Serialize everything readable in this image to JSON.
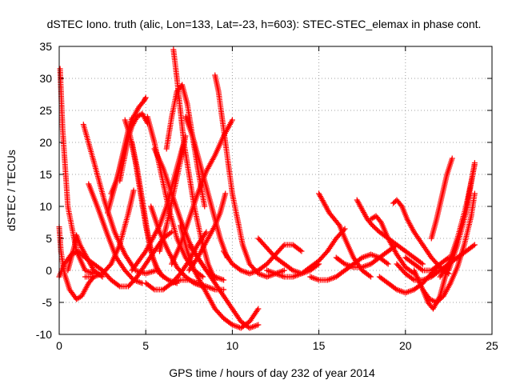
{
  "chart_data": {
    "type": "scatter",
    "title": "dSTEC Iono. truth (alic, Lon=133, Lat=-23, h=603): STEC-STEC_elemax in phase cont.",
    "xlabel": "GPS time / hours of day 232 of year 2014",
    "ylabel": "dSTEC  / TECUs",
    "xlim": [
      0,
      25
    ],
    "ylim": [
      -10,
      35
    ],
    "x_ticks": [
      0,
      5,
      10,
      15,
      20,
      25
    ],
    "y_ticks": [
      -10,
      -5,
      0,
      5,
      10,
      15,
      20,
      25,
      30,
      35
    ],
    "grid": true,
    "marker": "plus",
    "color": "#ff0000",
    "series": [
      {
        "x": [
          0.05,
          0.2,
          0.5,
          1.0,
          1.5,
          2.0
        ],
        "y": [
          31.5,
          22,
          10,
          3,
          0,
          -0.5
        ]
      },
      {
        "x": [
          0.0,
          0.1,
          0.3,
          0.6,
          1.0,
          1.3,
          1.7,
          2.0
        ],
        "y": [
          6.8,
          3,
          -0.5,
          -3,
          -4.5,
          -4,
          -2,
          -1
        ]
      },
      {
        "x": [
          0.0,
          0.3,
          0.7,
          1.1,
          1.5,
          2.0,
          2.5
        ],
        "y": [
          -1,
          1,
          2.5,
          3,
          2,
          1,
          0
        ]
      },
      {
        "x": [
          0.5,
          0.7,
          0.9,
          1.0,
          1.2,
          1.6,
          2.0,
          2.5
        ],
        "y": [
          0,
          2,
          4,
          5.5,
          4,
          2,
          0,
          -1
        ]
      },
      {
        "x": [
          1.4,
          2.0,
          2.6,
          3.2,
          3.8,
          4.4,
          5.0,
          5.6
        ],
        "y": [
          22.8,
          17,
          11,
          6,
          2.5,
          0,
          -0.5,
          0
        ]
      },
      {
        "x": [
          1.7,
          2.2,
          2.8,
          3.3,
          3.8,
          4.3,
          4.8
        ],
        "y": [
          13.5,
          10,
          5.5,
          2,
          0,
          -1.5,
          -2
        ]
      },
      {
        "x": [
          1.5,
          2.0,
          2.5,
          3.0,
          3.5,
          4.0,
          4.3
        ],
        "y": [
          -1,
          -1,
          -0.5,
          1,
          4,
          9,
          12.5
        ]
      },
      {
        "x": [
          2.5,
          3.0,
          3.5,
          4.0,
          4.5,
          5.0,
          5.5,
          6.0,
          6.5
        ],
        "y": [
          0,
          -1.5,
          -2.5,
          -2.5,
          -1,
          1,
          3,
          5,
          6
        ]
      },
      {
        "x": [
          2.8,
          3.1,
          3.4,
          3.7,
          4.0,
          4.2
        ],
        "y": [
          9,
          12,
          15,
          18.5,
          22,
          23.8
        ]
      },
      {
        "x": [
          3.0,
          3.3,
          3.6,
          3.9,
          4.2,
          4.5,
          4.8,
          5.1
        ],
        "y": [
          12,
          14,
          17,
          20,
          22.5,
          24,
          24.5,
          23
        ]
      },
      {
        "x": [
          3.5,
          3.8,
          4.0,
          4.3,
          4.6,
          4.9,
          5.0
        ],
        "y": [
          14,
          18,
          21,
          24,
          25.5,
          26.5,
          27
        ]
      },
      {
        "x": [
          3.8,
          4.1,
          4.4,
          4.7,
          5.0,
          5.3,
          5.6,
          6.0
        ],
        "y": [
          23.5,
          21,
          17,
          12,
          7,
          3,
          0.5,
          -1
        ]
      },
      {
        "x": [
          4.2,
          4.5,
          4.8,
          5.1,
          5.4,
          5.8,
          6.3,
          6.8
        ],
        "y": [
          20,
          16,
          11,
          6,
          2,
          -0.5,
          -1.5,
          -2
        ]
      },
      {
        "x": [
          4.2,
          4.6,
          5.0,
          5.4,
          5.8,
          6.2,
          6.6,
          7.0,
          7.2
        ],
        "y": [
          0,
          1.5,
          3,
          5,
          7,
          10,
          14,
          18,
          20
        ]
      },
      {
        "x": [
          5.0,
          5.5,
          6.0,
          6.5,
          7.0,
          7.5,
          8.0,
          8.5
        ],
        "y": [
          -2,
          -3,
          -3,
          -2,
          -0.5,
          1.5,
          4,
          6
        ]
      },
      {
        "x": [
          5.3,
          5.8,
          6.3,
          6.8,
          7.3,
          7.8,
          8.3
        ],
        "y": [
          10,
          6,
          3,
          0.5,
          -1,
          -2,
          -2.5
        ]
      },
      {
        "x": [
          5.1,
          5.5,
          5.9,
          6.3,
          6.8,
          7.3,
          7.8,
          8.3
        ],
        "y": [
          24,
          20,
          15,
          10,
          5,
          2,
          0,
          -1
        ]
      },
      {
        "x": [
          5.5,
          6.0,
          6.5,
          7.0,
          7.5,
          8.0,
          8.5,
          9.0,
          9.5
        ],
        "y": [
          19,
          16,
          12,
          8,
          4.5,
          2,
          0,
          -1,
          -1.5
        ]
      },
      {
        "x": [
          5.8,
          6.2,
          6.6,
          7.0,
          7.3
        ],
        "y": [
          3,
          7,
          12,
          17,
          21
        ]
      },
      {
        "x": [
          6.2,
          6.5,
          6.8,
          7.1,
          7.4,
          7.7,
          8.0,
          8.4
        ],
        "y": [
          19,
          24,
          28,
          29,
          26,
          21,
          16,
          10
        ]
      },
      {
        "x": [
          6.6,
          6.8,
          7.0,
          7.2,
          7.5,
          7.8,
          8.2,
          8.6,
          9.0
        ],
        "y": [
          34.5,
          30,
          25,
          20,
          15,
          10,
          5,
          1,
          -1.5
        ]
      },
      {
        "x": [
          6.5,
          7.0,
          7.5,
          8.0,
          8.5,
          9.0,
          9.5,
          10.0
        ],
        "y": [
          1,
          4,
          8,
          12,
          15.5,
          18,
          21,
          23.5
        ]
      },
      {
        "x": [
          7.0,
          7.4,
          7.8,
          8.2,
          8.6,
          9.0,
          9.5,
          10.0,
          10.5,
          11.0,
          11.5
        ],
        "y": [
          7,
          3,
          0,
          -2,
          -4,
          -6,
          -7.5,
          -8.5,
          -9,
          -8,
          -6
        ]
      },
      {
        "x": [
          7.3,
          7.7,
          8.1,
          8.5,
          8.9,
          9.3,
          9.7
        ],
        "y": [
          24,
          21,
          17,
          13,
          9,
          5,
          2
        ]
      },
      {
        "x": [
          7.5,
          8.0,
          8.5,
          9.0,
          9.5,
          10.0,
          10.5,
          11.0,
          11.5
        ],
        "y": [
          4,
          2,
          0,
          -2,
          -4,
          -6,
          -8,
          -9,
          -8.5
        ]
      },
      {
        "x": [
          9.0,
          9.2,
          9.4,
          9.6,
          9.8,
          10.0,
          10.3,
          10.6,
          11.0,
          11.5,
          12.0,
          12.5,
          13.0
        ],
        "y": [
          30.5,
          28,
          24,
          20,
          16,
          12,
          8,
          4,
          1,
          -0.5,
          -1,
          -0.5,
          0
        ]
      },
      {
        "x": [
          7.5,
          8.0,
          8.5,
          9.0,
          9.3,
          9.6
        ],
        "y": [
          0,
          2,
          4.5,
          7,
          9,
          12
        ]
      },
      {
        "x": [
          6.5,
          7.0,
          7.5,
          8.0,
          8.5,
          9.0,
          9.5
        ],
        "y": [
          -2,
          -1.5,
          -1.5,
          -2,
          -2.5,
          -3,
          -3
        ]
      },
      {
        "x": [
          9.5,
          10.0,
          10.5,
          11.0,
          11.5,
          12.0,
          12.5,
          13.0,
          13.5,
          14.0
        ],
        "y": [
          3,
          1,
          0,
          -0.5,
          0,
          1,
          2.5,
          4,
          4,
          3
        ]
      },
      {
        "x": [
          11.5,
          12.0,
          12.5,
          13.0,
          13.5,
          14.0,
          14.5,
          15.0
        ],
        "y": [
          5,
          3.5,
          2,
          1,
          0,
          -0.5,
          0,
          1
        ]
      },
      {
        "x": [
          12.0,
          12.5,
          13.0,
          13.5,
          14.0,
          14.5,
          15.0,
          15.5,
          16.0,
          16.5
        ],
        "y": [
          0,
          -0.5,
          -1,
          -1,
          -0.5,
          0.5,
          1.5,
          3,
          5,
          6.5
        ]
      },
      {
        "x": [
          15.0,
          15.3,
          15.6,
          15.9,
          16.2,
          16.5,
          17.0,
          17.5,
          18.0
        ],
        "y": [
          12,
          10.5,
          9,
          8,
          7,
          5,
          2,
          0,
          -1
        ]
      },
      {
        "x": [
          14.5,
          15.0,
          15.5,
          16.0,
          16.5,
          17.0,
          17.5,
          18.0,
          18.5,
          19.0
        ],
        "y": [
          -1,
          -1.5,
          -1.5,
          -1,
          0,
          1,
          2,
          2.5,
          2,
          1
        ]
      },
      {
        "x": [
          17.2,
          17.5,
          17.8,
          18.1,
          18.5,
          19.0,
          19.5,
          20.0,
          20.5,
          21.0
        ],
        "y": [
          11,
          9.5,
          8,
          7,
          6,
          5,
          4,
          3,
          2,
          1
        ]
      },
      {
        "x": [
          16.0,
          16.5,
          17.0,
          17.5,
          18.0,
          18.5,
          19.0,
          19.5
        ],
        "y": [
          2,
          1,
          0.5,
          0.5,
          1,
          2,
          3,
          4
        ]
      },
      {
        "x": [
          18.0,
          18.3,
          18.6,
          19.0,
          19.5,
          20.0,
          20.5
        ],
        "y": [
          8,
          8.5,
          7.5,
          5,
          2.5,
          0.5,
          -0.5
        ]
      },
      {
        "x": [
          19.3,
          19.5,
          19.8,
          20.1,
          20.5,
          21.0,
          21.5,
          22.0,
          22.5
        ],
        "y": [
          10.5,
          11,
          10,
          8,
          6,
          4,
          2,
          0.5,
          -0.5
        ]
      },
      {
        "x": [
          18.5,
          19.0,
          19.5,
          20.0,
          20.5,
          21.0,
          21.5,
          22.0
        ],
        "y": [
          -1,
          -2,
          -3,
          -3.5,
          -3,
          -2,
          -0.5,
          1
        ]
      },
      {
        "x": [
          19.5,
          20.0,
          20.5,
          21.0,
          21.5,
          22.0,
          22.5,
          23.0,
          23.5,
          24.0
        ],
        "y": [
          1,
          -0.5,
          -1.5,
          -1.5,
          -1,
          0,
          1,
          2,
          3,
          4
        ]
      },
      {
        "x": [
          20.5,
          21.0,
          21.3,
          21.6,
          22.0,
          22.3,
          22.6
        ],
        "y": [
          0,
          -3,
          -5,
          -6,
          -4,
          -1,
          2
        ]
      },
      {
        "x": [
          21.0,
          21.4,
          21.8,
          22.2,
          22.6,
          23.0,
          23.4,
          23.8,
          24.0
        ],
        "y": [
          -3,
          -4.5,
          -5,
          -4,
          -2,
          0.5,
          4,
          8.5,
          12
        ]
      },
      {
        "x": [
          21.5,
          21.8,
          22.1,
          22.4,
          22.7
        ],
        "y": [
          5,
          8,
          11.5,
          15,
          17.5
        ]
      },
      {
        "x": [
          22.0,
          22.5,
          23.0,
          23.5,
          24.0
        ],
        "y": [
          -1,
          1,
          5,
          10,
          16.5
        ]
      },
      {
        "x": [
          22.5,
          23.0,
          23.5,
          24.0
        ],
        "y": [
          0,
          4,
          9,
          16.8
        ]
      },
      {
        "x": [
          20.0,
          20.5,
          21.0,
          21.5,
          22.0,
          22.5
        ],
        "y": [
          2,
          1,
          0,
          0,
          1,
          2
        ]
      }
    ]
  }
}
